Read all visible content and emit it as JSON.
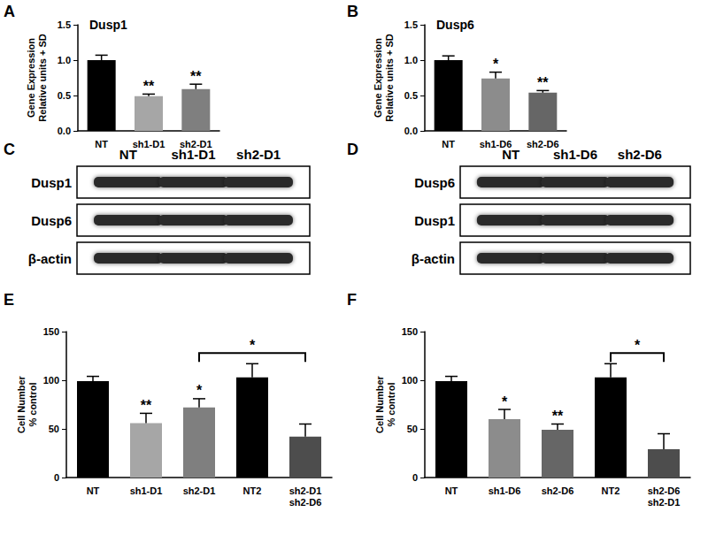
{
  "chart_data": [
    {
      "panel": "A",
      "type": "bar",
      "title": "Dusp1",
      "ylabel": "Gene Expression\nRelative units + SD",
      "categories": [
        "NT",
        "sh1-D1",
        "sh2-D1"
      ],
      "values": [
        1.0,
        0.49,
        0.59
      ],
      "errors": [
        0.07,
        0.03,
        0.07
      ],
      "colors": [
        "#000000",
        "#a6a6a6",
        "#7f7f7f"
      ],
      "ylim": [
        0,
        1.5
      ],
      "yticks": [
        {
          "value": 0,
          "label": "0.0"
        },
        0.5,
        {
          "value": 1,
          "label": "1.0"
        },
        1.5
      ],
      "grid": false,
      "annotations": [
        {
          "text": "**",
          "category": "sh1-D1"
        },
        {
          "text": "**",
          "category": "sh2-D1"
        }
      ]
    },
    {
      "panel": "B",
      "type": "bar",
      "title": "Dusp6",
      "ylabel": "Gene Expression\nRelative units + SD",
      "categories": [
        "NT",
        "sh1-D6",
        "sh2-D6"
      ],
      "values": [
        1.0,
        0.74,
        0.54
      ],
      "errors": [
        0.06,
        0.09,
        0.03
      ],
      "colors": [
        "#000000",
        "#8c8c8c",
        "#666666"
      ],
      "ylim": [
        0,
        1.5
      ],
      "yticks": [
        {
          "value": 0,
          "label": "0.0"
        },
        0.5,
        {
          "value": 1,
          "label": "1.0"
        },
        1.5
      ],
      "grid": false,
      "annotations": [
        {
          "text": "*",
          "category": "sh1-D6"
        },
        {
          "text": "**",
          "category": "sh2-D6"
        }
      ]
    },
    {
      "panel": "E",
      "type": "bar",
      "ylabel": "Cell Number\n% control",
      "categories": [
        "NT",
        "sh1-D1",
        "sh2-D1",
        "NT2",
        "sh2-D1\nsh2-D6"
      ],
      "values": [
        99,
        56,
        72,
        103,
        42
      ],
      "errors": [
        5,
        10,
        9,
        14,
        13
      ],
      "colors": [
        "#000000",
        "#a6a6a6",
        "#7f7f7f",
        "#000000",
        "#4d4d4d"
      ],
      "ylim": [
        0,
        150
      ],
      "yticks": [
        0,
        50,
        100,
        150
      ],
      "grid": false,
      "annotations": [
        {
          "text": "**",
          "category": "sh1-D1"
        },
        {
          "text": "*",
          "category": "sh2-D1"
        }
      ],
      "brackets": [
        {
          "from": "sh2-D1",
          "to": "sh2-D1\nsh2-D6",
          "text": "*"
        }
      ]
    },
    {
      "panel": "F",
      "type": "bar",
      "ylabel": "Cell Number\n% control",
      "categories": [
        "NT",
        "sh1-D6",
        "sh2-D6",
        "NT2",
        "sh2-D6\nsh2-D1"
      ],
      "values": [
        99,
        60,
        49,
        103,
        29
      ],
      "errors": [
        5,
        10,
        6,
        14,
        16
      ],
      "colors": [
        "#000000",
        "#8c8c8c",
        "#666666",
        "#000000",
        "#4d4d4d"
      ],
      "ylim": [
        0,
        150
      ],
      "yticks": [
        0,
        50,
        100,
        150
      ],
      "grid": false,
      "annotations": [
        {
          "text": "*",
          "category": "sh1-D6"
        },
        {
          "text": "**",
          "category": "sh2-D6"
        }
      ],
      "brackets": [
        {
          "from": "NT2",
          "to": "sh2-D6\nsh2-D1",
          "text": "*"
        }
      ]
    }
  ],
  "blots": [
    {
      "panel": "C",
      "columns": [
        "NT",
        "sh1-D1",
        "sh2-D1"
      ],
      "rows": [
        "Dusp1",
        "Dusp6",
        "β-actin"
      ]
    },
    {
      "panel": "D",
      "columns": [
        "NT",
        "sh1-D6",
        "sh2-D6"
      ],
      "rows": [
        "Dusp6",
        "Dusp1",
        "β-actin"
      ]
    }
  ]
}
